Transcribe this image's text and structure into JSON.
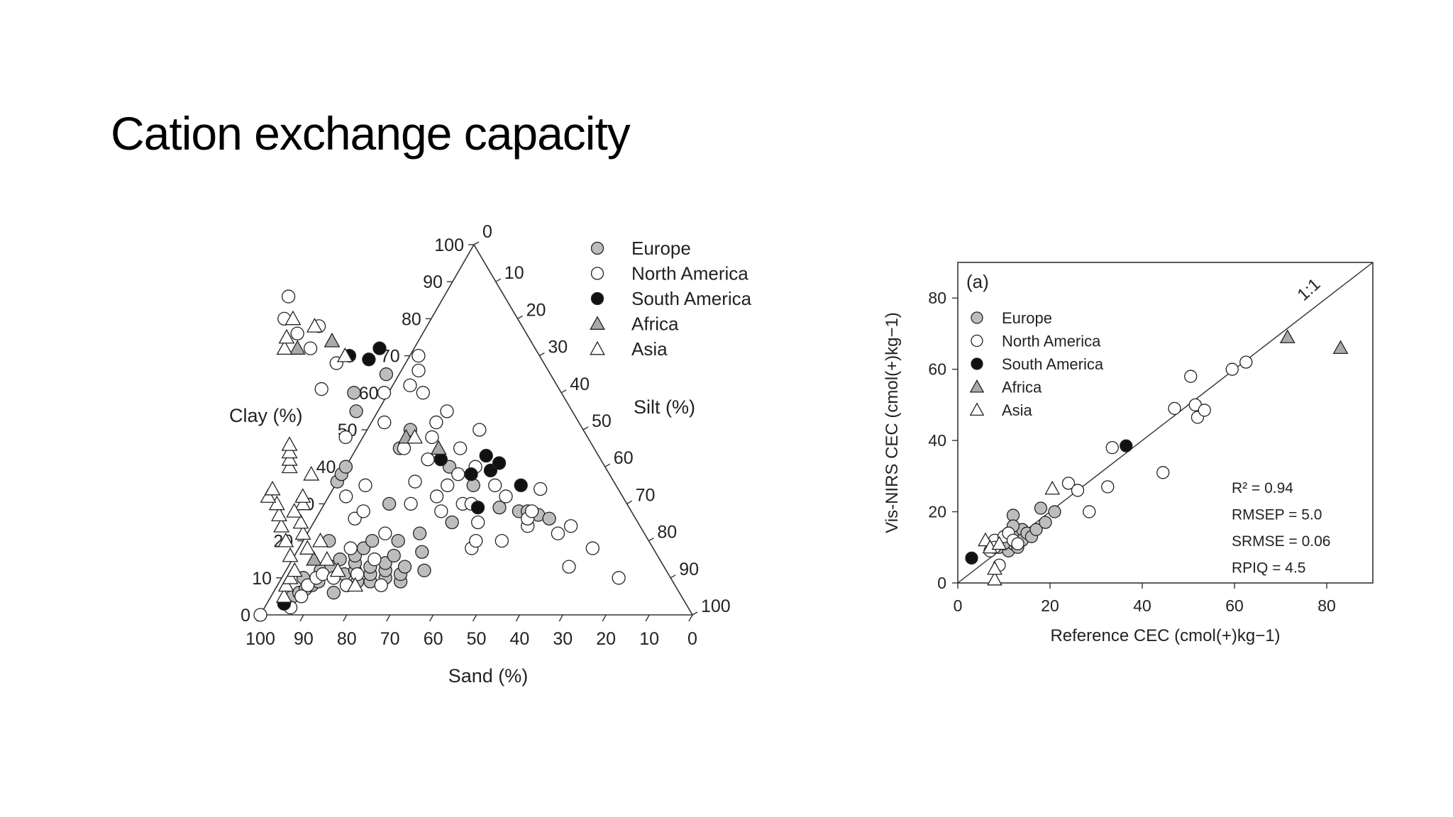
{
  "slide": {
    "title": "Cation exchange capacity"
  },
  "colors": {
    "europe": "#bdbdbd",
    "north_america": "#ffffff",
    "south_america": "#111111",
    "africa": "#aaaaaa",
    "asia": "#ffffff",
    "axis": "#333333"
  },
  "chart_data": [
    {
      "type": "scatter",
      "subtype": "ternary",
      "axes": {
        "clay_label": "Clay (%)",
        "silt_label": "Silt (%)",
        "sand_label": "Sand (%)"
      },
      "clay_ticks": [
        "0",
        "10",
        "20",
        "30",
        "40",
        "50",
        "60",
        "70",
        "80",
        "90",
        "100"
      ],
      "silt_ticks": [
        "0",
        "10",
        "20",
        "30",
        "40",
        "50",
        "60",
        "70",
        "80",
        "90",
        "100"
      ],
      "sand_ticks": [
        "100",
        "90",
        "80",
        "70",
        "60",
        "50",
        "40",
        "30",
        "20",
        "10",
        "0"
      ],
      "legend": {
        "position": "top-right",
        "entries": [
          {
            "label": "Europe",
            "marker": "circle",
            "fill": "#bdbdbd"
          },
          {
            "label": "North America",
            "marker": "circle",
            "fill": "#ffffff"
          },
          {
            "label": "South America",
            "marker": "circle",
            "fill": "#111111"
          },
          {
            "label": "Africa",
            "marker": "triangle",
            "fill": "#aaaaaa"
          },
          {
            "label": "Asia",
            "marker": "triangle",
            "fill": "#ffffff"
          }
        ]
      },
      "series": [
        {
          "name": "Europe",
          "marker": "circle",
          "fill": "#bdbdbd",
          "points_sand_clay": [
            [
              90,
              5
            ],
            [
              88,
              6
            ],
            [
              86,
              7
            ],
            [
              85,
              10
            ],
            [
              84,
              8
            ],
            [
              82,
              9
            ],
            [
              80,
              12
            ],
            [
              80,
              6
            ],
            [
              78,
              10
            ],
            [
              77,
              13
            ],
            [
              76,
              8
            ],
            [
              75,
              11
            ],
            [
              74,
              15
            ],
            [
              74,
              20
            ],
            [
              73,
              9
            ],
            [
              72,
              12
            ],
            [
              71,
              14
            ],
            [
              70,
              9
            ],
            [
              70,
              16
            ],
            [
              69,
              11
            ],
            [
              68,
              13
            ],
            [
              67,
              18
            ],
            [
              66,
              10
            ],
            [
              65,
              12
            ],
            [
              64,
              14
            ],
            [
              64,
              20
            ],
            [
              63,
              9
            ],
            [
              62,
              11
            ],
            [
              61,
              16
            ],
            [
              60,
              13
            ],
            [
              58,
              20
            ],
            [
              56,
              12
            ],
            [
              55,
              30
            ],
            [
              54,
              17
            ],
            [
              52,
              22
            ],
            [
              50,
              55
            ],
            [
              48,
              60
            ],
            [
              45,
              45
            ],
            [
              43,
              25
            ],
            [
              40,
              50
            ],
            [
              38,
              65
            ],
            [
              36,
              40
            ],
            [
              33,
              35
            ],
            [
              30,
              29
            ],
            [
              26,
              28
            ],
            [
              24,
              28
            ],
            [
              22,
              27
            ],
            [
              20,
              26
            ],
            [
              64,
              36
            ],
            [
              62,
              38
            ],
            [
              60,
              40
            ]
          ]
        },
        {
          "name": "North America",
          "marker": "circle",
          "fill": "#ffffff",
          "points_sand_clay": [
            [
              100,
              0
            ],
            [
              92,
              2
            ],
            [
              88,
              5
            ],
            [
              85,
              8
            ],
            [
              82,
              10
            ],
            [
              80,
              11
            ],
            [
              78,
              10
            ],
            [
              76,
              8
            ],
            [
              72,
              11
            ],
            [
              70,
              18
            ],
            [
              68,
              8
            ],
            [
              66,
              15
            ],
            [
              65,
              26
            ],
            [
              64,
              32
            ],
            [
              62,
              28
            ],
            [
              60,
              22
            ],
            [
              58,
              35
            ],
            [
              56,
              48
            ],
            [
              55,
              61
            ],
            [
              54,
              80
            ],
            [
              53,
              76
            ],
            [
              52,
              72
            ],
            [
              50,
              86
            ],
            [
              48,
              68
            ],
            [
              47,
              78
            ],
            [
              45,
              52
            ],
            [
              44,
              45
            ],
            [
              43,
              32
            ],
            [
              42,
              18
            ],
            [
              41,
              60
            ],
            [
              40,
              42
            ],
            [
              39,
              35
            ],
            [
              38,
              30
            ],
            [
              37,
              25
            ],
            [
              36,
              48
            ],
            [
              35,
              38
            ],
            [
              34,
              20
            ],
            [
              33,
              52
            ],
            [
              32,
              60
            ],
            [
              31,
              45
            ],
            [
              30,
              40
            ],
            [
              29,
              55
            ],
            [
              28,
              35
            ],
            [
              27,
              32
            ],
            [
              26,
              24
            ],
            [
              25,
              26
            ],
            [
              24,
              50
            ],
            [
              23,
              28
            ],
            [
              22,
              13
            ],
            [
              20,
              22
            ],
            [
              18,
              34
            ],
            [
              16,
              24
            ],
            [
              14,
              18
            ],
            [
              12,
              10
            ],
            [
              50,
              30
            ],
            [
              46,
              36
            ],
            [
              44,
              28
            ],
            [
              40,
              20
            ],
            [
              36,
              30
            ],
            [
              34,
              62
            ],
            [
              30,
              66
            ],
            [
              28,
              70
            ]
          ]
        },
        {
          "name": "South America",
          "marker": "circle",
          "fill": "#111111",
          "points_sand_clay": [
            [
              93,
              3
            ],
            [
              44,
              70
            ],
            [
              40,
              69
            ],
            [
              36,
              72
            ],
            [
              37,
              42
            ],
            [
              35,
              29
            ],
            [
              32,
              38
            ],
            [
              27,
              39
            ],
            [
              26,
              43
            ],
            [
              24,
              41
            ],
            [
              22,
              35
            ]
          ]
        },
        {
          "name": "Africa",
          "marker": "triangle",
          "fill": "#aaaaaa",
          "points_sand_clay": [
            [
              55,
              72
            ],
            [
              46,
              74
            ],
            [
              42,
              48
            ],
            [
              36,
              45
            ],
            [
              80,
              15
            ]
          ]
        },
        {
          "name": "Asia",
          "marker": "triangle",
          "fill": "#ffffff",
          "points_sand_clay": [
            [
              92,
              5
            ],
            [
              90,
              8
            ],
            [
              88,
              10
            ],
            [
              86,
              12
            ],
            [
              85,
              16
            ],
            [
              84,
              20
            ],
            [
              83,
              24
            ],
            [
              82,
              27
            ],
            [
              81,
              30
            ],
            [
              80,
              18
            ],
            [
              79,
              22
            ],
            [
              78,
              25
            ],
            [
              77,
              15
            ],
            [
              76,
              20
            ],
            [
              75,
              30
            ],
            [
              74,
              32
            ],
            [
              73,
              40
            ],
            [
              72,
              42
            ],
            [
              71,
              44
            ],
            [
              70,
              46
            ],
            [
              69,
              38
            ],
            [
              82,
              32
            ],
            [
              80,
              34
            ],
            [
              78,
              28
            ],
            [
              76,
              12
            ],
            [
              74,
              8
            ],
            [
              58,
              72
            ],
            [
              56,
              75
            ],
            [
              52,
              80
            ],
            [
              48,
              78
            ],
            [
              45,
              70
            ],
            [
              40,
              48
            ]
          ]
        }
      ]
    },
    {
      "type": "scatter",
      "panel_label": "(a)",
      "xlabel": "Reference CEC (cmol(+)kg−1)",
      "ylabel": "Vis-NIRS CEC (cmol(+)kg−1)",
      "xlim": [
        0,
        90
      ],
      "ylim": [
        0,
        90
      ],
      "x_ticks": [
        "0",
        "20",
        "40",
        "60",
        "80"
      ],
      "y_ticks": [
        "0",
        "20",
        "40",
        "60",
        "80"
      ],
      "reference_line": {
        "label": "1:1",
        "from": [
          0,
          0
        ],
        "to": [
          90,
          90
        ]
      },
      "stats": [
        "R² = 0.94",
        "RMSEP = 5.0",
        "SRMSE = 0.06",
        "RPIQ = 4.5"
      ],
      "legend": {
        "position": "top-left",
        "entries": [
          {
            "label": "Europe",
            "marker": "circle",
            "fill": "#bdbdbd"
          },
          {
            "label": "North America",
            "marker": "circle",
            "fill": "#ffffff"
          },
          {
            "label": "South America",
            "marker": "circle",
            "fill": "#111111"
          },
          {
            "label": "Africa",
            "marker": "triangle",
            "fill": "#aaaaaa"
          },
          {
            "label": "Asia",
            "marker": "triangle",
            "fill": "#ffffff"
          }
        ]
      },
      "series": [
        {
          "name": "Europe",
          "marker": "circle",
          "fill": "#bdbdbd",
          "points": [
            [
              9,
              10
            ],
            [
              10,
              12
            ],
            [
              11,
              9
            ],
            [
              11,
              14
            ],
            [
              12,
              11
            ],
            [
              12,
              19
            ],
            [
              13,
              13
            ],
            [
              13,
              10
            ],
            [
              14,
              15
            ],
            [
              14,
              12
            ],
            [
              15,
              14
            ],
            [
              16,
              13
            ],
            [
              17,
              15
            ],
            [
              18,
              21
            ],
            [
              19,
              17
            ],
            [
              21,
              20
            ],
            [
              12,
              16
            ],
            [
              10,
              11
            ]
          ]
        },
        {
          "name": "North America",
          "marker": "circle",
          "fill": "#ffffff",
          "points": [
            [
              7,
              9
            ],
            [
              8,
              12
            ],
            [
              8,
              10
            ],
            [
              9,
              5
            ],
            [
              10,
              13
            ],
            [
              11,
              14
            ],
            [
              12,
              12
            ],
            [
              24,
              28
            ],
            [
              26,
              26
            ],
            [
              28.5,
              20
            ],
            [
              32.5,
              27
            ],
            [
              33.5,
              38
            ],
            [
              44.5,
              31
            ],
            [
              47,
              49
            ],
            [
              50.5,
              58
            ],
            [
              51.5,
              50
            ],
            [
              52,
              46.5
            ],
            [
              53.5,
              48.5
            ],
            [
              59.5,
              60
            ],
            [
              62.5,
              62
            ],
            [
              13,
              11
            ]
          ]
        },
        {
          "name": "South America",
          "marker": "circle",
          "fill": "#111111",
          "points": [
            [
              3,
              7
            ],
            [
              36.5,
              38.5
            ]
          ]
        },
        {
          "name": "Africa",
          "marker": "triangle",
          "fill": "#aaaaaa",
          "points": [
            [
              71.5,
              69
            ],
            [
              83,
              66
            ]
          ]
        },
        {
          "name": "Asia",
          "marker": "triangle",
          "fill": "#ffffff",
          "points": [
            [
              6,
              12
            ],
            [
              7,
              10
            ],
            [
              8,
              1
            ],
            [
              8,
              4
            ],
            [
              9,
              11
            ],
            [
              20.5,
              26.5
            ]
          ]
        }
      ]
    }
  ]
}
